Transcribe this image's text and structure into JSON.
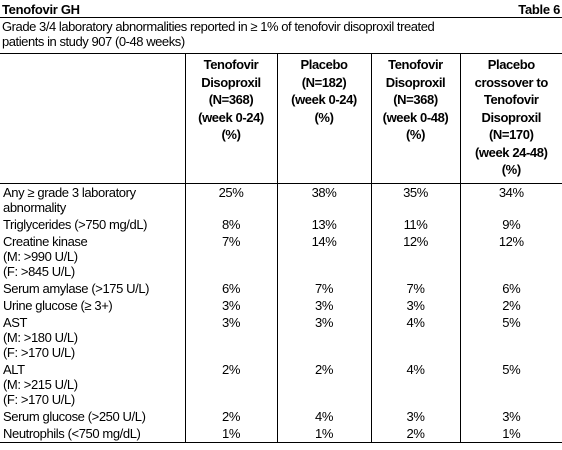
{
  "header": {
    "title": "Tenofovir GH",
    "table_number": "Table 6"
  },
  "caption": [
    "Grade 3/4 laboratory abnormalities reported in ≥ 1% of tenofovir disoproxil treated",
    "patients in study 907 (0-48 weeks)"
  ],
  "table": {
    "columns": [
      [
        "Tenofovir",
        "Disoproxil",
        "(N=368)",
        "(week 0-24)",
        "(%)"
      ],
      [
        "Placebo",
        "(N=182)",
        "(week 0-24)",
        "(%)"
      ],
      [
        "Tenofovir",
        "Disoproxil",
        "(N=368)",
        "(week 0-48)",
        "(%)"
      ],
      [
        "Placebo",
        "crossover to",
        "Tenofovir",
        "Disoproxil",
        "(N=170)",
        "(week 24-48)",
        "(%)"
      ]
    ],
    "rows": [
      {
        "label": [
          "Any ≥ grade 3 laboratory",
          "abnormality"
        ],
        "values": [
          "25%",
          "38%",
          "35%",
          "34%"
        ]
      },
      {
        "label": [
          "Triglycerides (>750 mg/dL)"
        ],
        "values": [
          "8%",
          "13%",
          "11%",
          "9%"
        ]
      },
      {
        "label": [
          "Creatine kinase",
          "(M: >990 U/L)",
          "(F: >845 U/L)"
        ],
        "values": [
          "7%",
          "14%",
          "12%",
          "12%"
        ]
      },
      {
        "label": [
          "Serum amylase (>175 U/L)"
        ],
        "values": [
          "6%",
          "7%",
          "7%",
          "6%"
        ]
      },
      {
        "label": [
          "Urine glucose (≥ 3+)"
        ],
        "values": [
          "3%",
          "3%",
          "3%",
          "2%"
        ]
      },
      {
        "label": [
          "AST",
          "(M: >180 U/L)",
          "(F: >170 U/L)"
        ],
        "values": [
          "3%",
          "3%",
          "4%",
          "5%"
        ]
      },
      {
        "label": [
          "ALT",
          "(M: >215 U/L)",
          "(F: >170 U/L)"
        ],
        "values": [
          "2%",
          "2%",
          "4%",
          "5%"
        ]
      },
      {
        "label": [
          "Serum glucose (>250 U/L)"
        ],
        "values": [
          "2%",
          "4%",
          "3%",
          "3%"
        ]
      },
      {
        "label": [
          "Neutrophils (<750 mg/dL)"
        ],
        "values": [
          "1%",
          "1%",
          "2%",
          "1%"
        ]
      }
    ]
  }
}
